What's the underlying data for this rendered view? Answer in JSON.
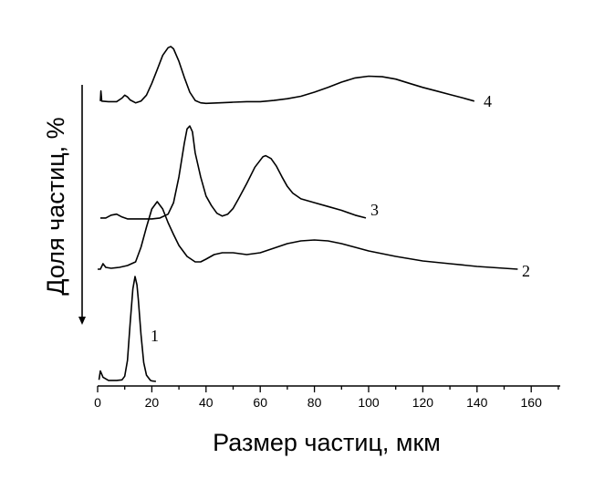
{
  "chart_data": {
    "type": "line",
    "xlabel": "Размер частиц, мкм",
    "ylabel": "Доля частиц, %",
    "xlim": [
      0,
      170
    ],
    "x_ticks": [
      0,
      20,
      40,
      60,
      80,
      100,
      120,
      140,
      160
    ],
    "x_tick_labels": [
      "0",
      "20",
      "40",
      "60",
      "80",
      "100",
      "120",
      "140",
      "160"
    ],
    "y_ticks": false,
    "grid": false,
    "legend": "none",
    "y_arrow_direction": "down",
    "series": [
      {
        "name": "1",
        "points": [
          [
            0.5,
            0.015
          ],
          [
            1,
            0.1
          ],
          [
            2,
            0.04
          ],
          [
            4,
            0.01
          ],
          [
            7,
            0.01
          ],
          [
            9,
            0.015
          ],
          [
            10,
            0.05
          ],
          [
            11,
            0.2
          ],
          [
            12,
            0.55
          ],
          [
            13,
            0.88
          ],
          [
            13.8,
            1
          ],
          [
            14.5,
            0.92
          ],
          [
            15,
            0.78
          ],
          [
            16,
            0.45
          ],
          [
            17,
            0.18
          ],
          [
            18,
            0.06
          ],
          [
            19.5,
            0.01
          ],
          [
            20,
            0.005
          ],
          [
            21.5,
            0
          ]
        ]
      },
      {
        "name": "2",
        "points": [
          [
            0,
            0.04
          ],
          [
            1,
            0.04
          ],
          [
            2,
            0.1
          ],
          [
            3,
            0.06
          ],
          [
            5,
            0.05
          ],
          [
            8,
            0.06
          ],
          [
            11,
            0.08
          ],
          [
            14,
            0.12
          ],
          [
            16,
            0.28
          ],
          [
            18,
            0.5
          ],
          [
            20,
            0.7
          ],
          [
            22,
            0.78
          ],
          [
            24,
            0.7
          ],
          [
            26,
            0.55
          ],
          [
            28,
            0.42
          ],
          [
            30,
            0.3
          ],
          [
            33,
            0.18
          ],
          [
            36,
            0.12
          ],
          [
            38,
            0.12
          ],
          [
            40,
            0.15
          ],
          [
            43,
            0.2
          ],
          [
            46,
            0.22
          ],
          [
            50,
            0.22
          ],
          [
            55,
            0.2
          ],
          [
            60,
            0.22
          ],
          [
            65,
            0.27
          ],
          [
            70,
            0.32
          ],
          [
            75,
            0.35
          ],
          [
            80,
            0.36
          ],
          [
            85,
            0.35
          ],
          [
            90,
            0.32
          ],
          [
            95,
            0.28
          ],
          [
            100,
            0.24
          ],
          [
            110,
            0.18
          ],
          [
            120,
            0.13
          ],
          [
            130,
            0.1
          ],
          [
            140,
            0.07
          ],
          [
            150,
            0.05
          ],
          [
            155,
            0.04
          ]
        ]
      },
      {
        "name": "3",
        "points": [
          [
            1,
            0.02
          ],
          [
            3,
            0.02
          ],
          [
            5,
            0.05
          ],
          [
            7,
            0.06
          ],
          [
            9,
            0.03
          ],
          [
            11,
            0.01
          ],
          [
            14,
            0.01
          ],
          [
            17,
            0.01
          ],
          [
            20,
            0.01
          ],
          [
            23,
            0.02
          ],
          [
            26,
            0.06
          ],
          [
            28,
            0.18
          ],
          [
            30,
            0.45
          ],
          [
            32,
            0.8
          ],
          [
            33,
            0.95
          ],
          [
            34,
            0.98
          ],
          [
            35,
            0.92
          ],
          [
            36,
            0.7
          ],
          [
            38,
            0.45
          ],
          [
            40,
            0.25
          ],
          [
            42,
            0.15
          ],
          [
            44,
            0.07
          ],
          [
            46,
            0.04
          ],
          [
            48,
            0.06
          ],
          [
            50,
            0.12
          ],
          [
            52,
            0.22
          ],
          [
            55,
            0.38
          ],
          [
            58,
            0.55
          ],
          [
            61,
            0.66
          ],
          [
            62,
            0.67
          ],
          [
            64,
            0.64
          ],
          [
            66,
            0.56
          ],
          [
            68,
            0.45
          ],
          [
            70,
            0.35
          ],
          [
            72,
            0.28
          ],
          [
            75,
            0.22
          ],
          [
            80,
            0.18
          ],
          [
            85,
            0.14
          ],
          [
            90,
            0.1
          ],
          [
            95,
            0.05
          ],
          [
            99,
            0.02
          ]
        ]
      },
      {
        "name": "4",
        "points": [
          [
            1,
            0.05
          ],
          [
            1.2,
            0.22
          ],
          [
            1.5,
            0.05
          ],
          [
            4,
            0.04
          ],
          [
            7,
            0.04
          ],
          [
            9,
            0.1
          ],
          [
            10,
            0.15
          ],
          [
            11,
            0.12
          ],
          [
            12,
            0.07
          ],
          [
            14,
            0.02
          ],
          [
            16,
            0.05
          ],
          [
            18,
            0.15
          ],
          [
            20,
            0.35
          ],
          [
            22,
            0.58
          ],
          [
            24,
            0.82
          ],
          [
            26,
            0.95
          ],
          [
            27,
            0.97
          ],
          [
            28,
            0.93
          ],
          [
            30,
            0.72
          ],
          [
            32,
            0.45
          ],
          [
            34,
            0.2
          ],
          [
            36,
            0.06
          ],
          [
            38,
            0.02
          ],
          [
            40,
            0.01
          ],
          [
            45,
            0.02
          ],
          [
            50,
            0.03
          ],
          [
            55,
            0.04
          ],
          [
            60,
            0.04
          ],
          [
            65,
            0.06
          ],
          [
            70,
            0.09
          ],
          [
            75,
            0.13
          ],
          [
            80,
            0.2
          ],
          [
            85,
            0.28
          ],
          [
            90,
            0.37
          ],
          [
            95,
            0.44
          ],
          [
            100,
            0.47
          ],
          [
            105,
            0.46
          ],
          [
            110,
            0.42
          ],
          [
            115,
            0.35
          ],
          [
            120,
            0.28
          ],
          [
            125,
            0.22
          ],
          [
            130,
            0.16
          ],
          [
            135,
            0.1
          ],
          [
            139,
            0.05
          ]
        ]
      }
    ]
  }
}
